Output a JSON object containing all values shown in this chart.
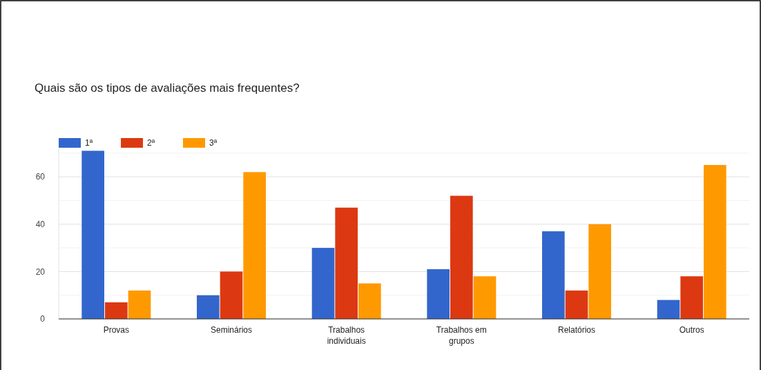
{
  "chart_data": {
    "type": "bar",
    "title": "Quais são os tipos de avaliações mais frequentes?",
    "categories": [
      "Provas",
      "Seminários",
      "Trabalhos individuais",
      "Trabalhos em grupos",
      "Relatórios",
      "Outros"
    ],
    "series": [
      {
        "name": "1ª",
        "color": "#3366cc",
        "values": [
          71,
          10,
          30,
          21,
          37,
          8
        ]
      },
      {
        "name": "2ª",
        "color": "#dc3912",
        "values": [
          7,
          20,
          47,
          52,
          12,
          18
        ]
      },
      {
        "name": "3ª",
        "color": "#ff9900",
        "values": [
          12,
          62,
          15,
          18,
          40,
          65
        ]
      }
    ],
    "ylim": [
      0,
      72
    ],
    "yticks": [
      0,
      {
        "value": 10,
        "label": null
      },
      20,
      {
        "value": 30,
        "label": null
      },
      40,
      {
        "value": 50,
        "label": null
      },
      60,
      {
        "value": 70,
        "label": null
      }
    ],
    "grid": true,
    "legend": "top left"
  }
}
